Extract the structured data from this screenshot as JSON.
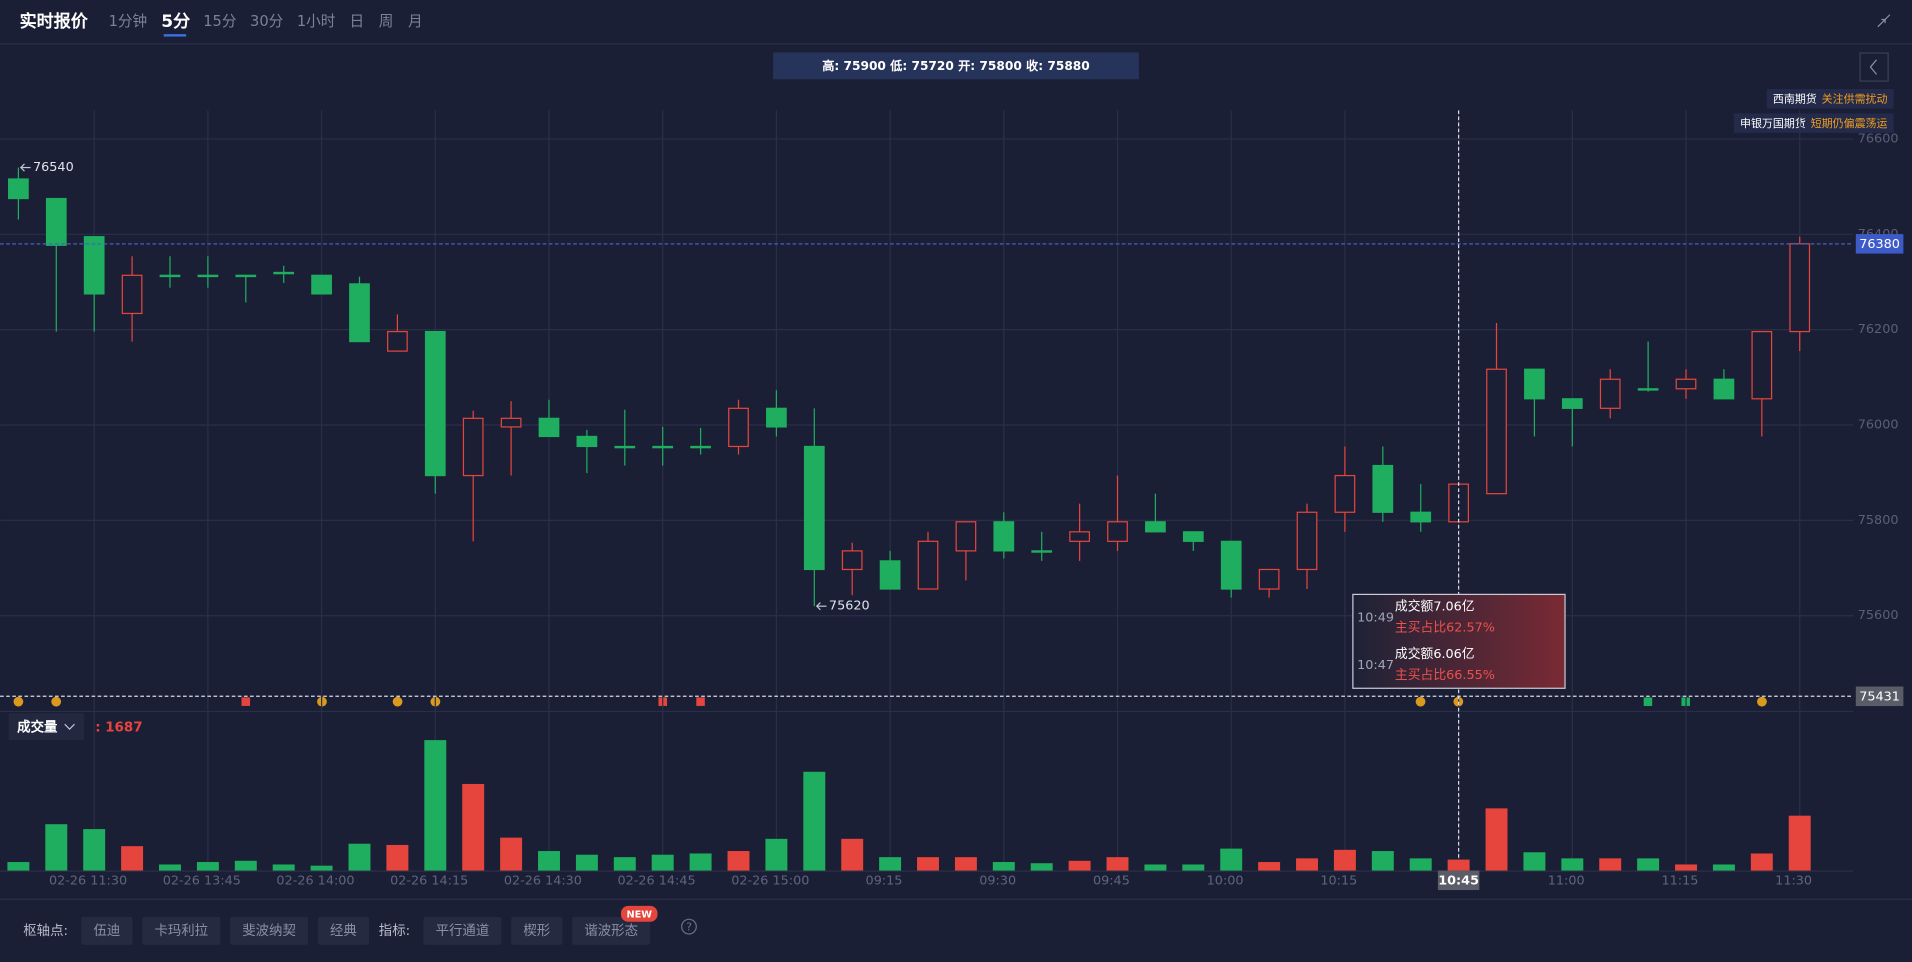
{
  "header": {
    "title": "实时报价",
    "tabs": [
      "1分钟",
      "5分",
      "15分",
      "30分",
      "1小时",
      "日",
      "周",
      "月"
    ],
    "active_tab": "5分"
  },
  "info_bar": "高: 75900 低: 75720 开: 75800 收: 75880",
  "broker_tags": [
    {
      "broker": "西南期货",
      "note": "关注供需扰动"
    },
    {
      "broker": "申银万国期货",
      "note": "短期仍偏震荡运"
    }
  ],
  "chart_data": {
    "type": "candlestick",
    "categories": [
      null,
      null,
      "02-26 11:30",
      null,
      null,
      "02-26 13:45",
      null,
      null,
      "02-26 14:00",
      null,
      null,
      "02-26 14:15",
      null,
      null,
      "02-26 14:30",
      null,
      null,
      "02-26 14:45",
      null,
      null,
      "02-26 15:00",
      null,
      null,
      "09:15",
      null,
      null,
      "09:30",
      null,
      null,
      "09:45",
      null,
      null,
      "10:00",
      null,
      null,
      "10:15",
      null,
      null,
      "10:45",
      null,
      null,
      "11:00",
      null,
      null,
      "11:15",
      null,
      null,
      "11:30"
    ],
    "open": [
      76516,
      76475,
      76395,
      76234,
      76314,
      76314,
      76314,
      76320,
      76314,
      76296,
      76155,
      76196,
      75894,
      75996,
      76014,
      75976,
      75955,
      75955,
      75955,
      75955,
      76035,
      75955,
      75697,
      75715,
      75656,
      75736,
      75797,
      75736,
      75756,
      75756,
      75797,
      75776,
      75756,
      75656,
      75697,
      75817,
      75915,
      75817,
      75797,
      75856,
      76117,
      76055,
      76035,
      76076,
      76076,
      76096,
      76055,
      76196
    ],
    "high": [
      76540,
      76475,
      76395,
      76354,
      76354,
      76354,
      76314,
      76334,
      76314,
      76311,
      76232,
      76196,
      76030,
      76050,
      76053,
      75990,
      76032,
      75996,
      75994,
      76053,
      76073,
      76035,
      75753,
      75736,
      75776,
      75797,
      75817,
      75776,
      75835,
      75894,
      75856,
      75776,
      75756,
      75697,
      75835,
      75955,
      75955,
      75876,
      75876,
      76214,
      76117,
      76055,
      76117,
      76175,
      76117,
      76117,
      76196,
      76395
    ],
    "low": [
      76431,
      76196,
      76196,
      76175,
      76288,
      76288,
      76257,
      76298,
      76275,
      76175,
      76155,
      75856,
      75756,
      75894,
      75976,
      75899,
      75915,
      75915,
      75938,
      75938,
      75976,
      75620,
      75643,
      75656,
      75656,
      75674,
      75720,
      75715,
      75715,
      75736,
      75776,
      75736,
      75638,
      75638,
      75656,
      75776,
      75797,
      75776,
      75797,
      75856,
      75976,
      75955,
      76014,
      76070,
      76055,
      76055,
      75976,
      76155
    ],
    "close": [
      76475,
      76377,
      76275,
      76314,
      76314,
      76314,
      76312,
      76318,
      76275,
      76175,
      76196,
      75894,
      76014,
      76014,
      75976,
      75955,
      75955,
      75955,
      75955,
      76035,
      75996,
      75697,
      75736,
      75656,
      75756,
      75797,
      75736,
      75736,
      75776,
      75797,
      75776,
      75756,
      75656,
      75697,
      75817,
      75894,
      75817,
      75797,
      75876,
      76117,
      76055,
      76035,
      76096,
      76076,
      76096,
      76055,
      76196,
      76380
    ],
    "up_color": "#e5453d",
    "down_color": "#1fae5f",
    "ylim": [
      75400,
      76660
    ],
    "yticks": [
      75600,
      75800,
      76000,
      76200,
      76400,
      76600
    ],
    "grid": true,
    "high_marker": 76540,
    "low_marker": 75620,
    "last_price": 76380,
    "crosshair_price": 75431,
    "crosshair_time": "10:45",
    "volume_label": "成交量",
    "volume_readout": ": 1687",
    "volume": [
      262,
      1425,
      1275,
      750,
      187,
      262,
      300,
      187,
      150,
      825,
      787,
      4011,
      2662,
      1012,
      600,
      487,
      412,
      487,
      525,
      600,
      975,
      3037,
      975,
      412,
      412,
      412,
      262,
      225,
      300,
      412,
      187,
      187,
      675,
      262,
      375,
      637,
      600,
      375,
      337,
      1912,
      562,
      375,
      375,
      375,
      187,
      187,
      525,
      1687
    ]
  },
  "tooltip": [
    {
      "time": "10:49",
      "amount": "成交额7.06亿",
      "ratio": "主买占比62.57%"
    },
    {
      "time": "10:47",
      "amount": "成交额6.06亿",
      "ratio": "主买占比66.55%"
    }
  ],
  "toolbar": {
    "pivot_label": "枢轴点:",
    "pivots": [
      "伍迪",
      "卡玛利拉",
      "斐波纳契",
      "经典"
    ],
    "indicator_label": "指标:",
    "indicators": [
      "平行通道",
      "楔形",
      "谐波形态"
    ],
    "badge": "NEW"
  }
}
